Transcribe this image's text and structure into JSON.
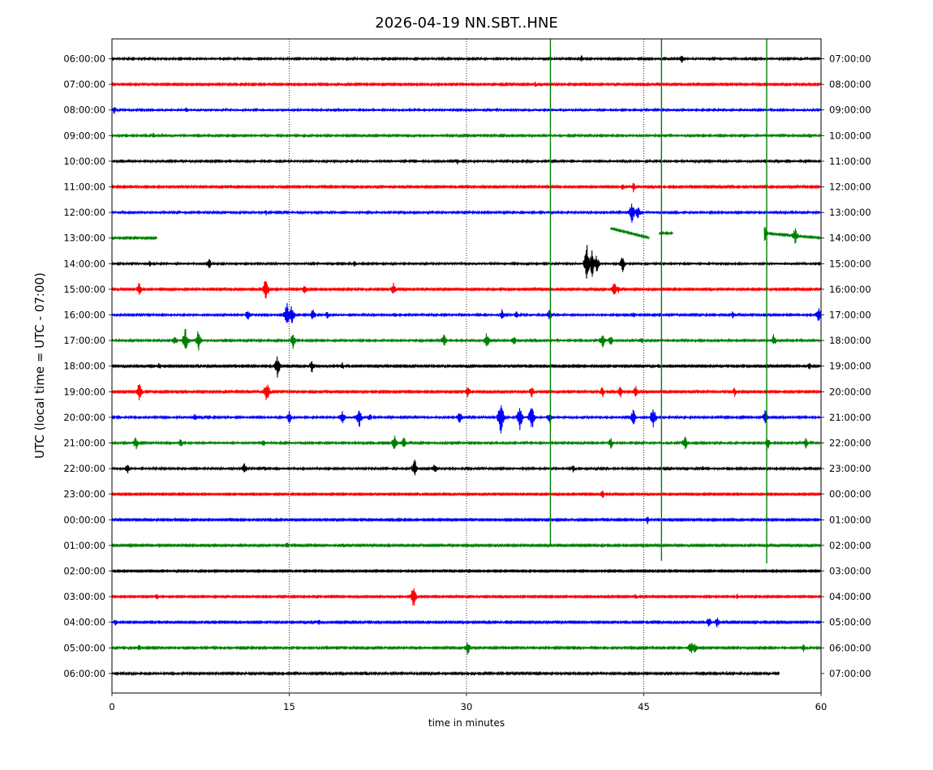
{
  "chart_data": {
    "type": "line",
    "title": "2026-04-19 NN.SBT..HNE",
    "xlabel": "time in minutes",
    "ylabel": "UTC (local time = UTC - 07:00)",
    "xlim": [
      0,
      60
    ],
    "x_ticks": [
      0,
      15,
      30,
      45,
      60
    ],
    "x_tick_labels": [
      "0",
      "15",
      "30",
      "45",
      "60"
    ],
    "vertical_gridlines_minutes": [
      15,
      30,
      45
    ],
    "grid": "dotted vertical lines at 15-minute intervals",
    "trace_colors": [
      "#000000",
      "#ff0000",
      "#0000ff",
      "#008000"
    ],
    "left_tick_labels": [
      "06:00:00",
      "07:00:00",
      "08:00:00",
      "09:00:00",
      "10:00:00",
      "11:00:00",
      "12:00:00",
      "13:00:00",
      "14:00:00",
      "15:00:00",
      "16:00:00",
      "17:00:00",
      "18:00:00",
      "19:00:00",
      "20:00:00",
      "21:00:00",
      "22:00:00",
      "23:00:00",
      "00:00:00",
      "01:00:00",
      "02:00:00",
      "03:00:00",
      "04:00:00",
      "05:00:00",
      "06:00:00"
    ],
    "right_tick_labels": [
      "07:00:00",
      "08:00:00",
      "09:00:00",
      "10:00:00",
      "11:00:00",
      "12:00:00",
      "13:00:00",
      "14:00:00",
      "15:00:00",
      "16:00:00",
      "17:00:00",
      "18:00:00",
      "19:00:00",
      "20:00:00",
      "21:00:00",
      "22:00:00",
      "23:00:00",
      "00:00:00",
      "01:00:00",
      "02:00:00",
      "03:00:00",
      "04:00:00",
      "05:00:00",
      "06:00:00",
      "07:00:00"
    ],
    "series": [
      {
        "row": 0,
        "color": "#000000",
        "start": 0,
        "end": 60,
        "noise": 1.2,
        "spikes": [
          [
            39.7,
            5
          ],
          [
            48.2,
            6
          ]
        ]
      },
      {
        "row": 1,
        "color": "#ff0000",
        "start": 0,
        "end": 60,
        "noise": 1.0,
        "spikes": [
          [
            35.8,
            4
          ]
        ]
      },
      {
        "row": 2,
        "color": "#0000ff",
        "start": 0,
        "end": 60,
        "noise": 1.3,
        "spikes": [
          [
            0.2,
            6
          ],
          [
            6.3,
            4
          ]
        ]
      },
      {
        "row": 3,
        "color": "#008000",
        "start": 0,
        "end": 60,
        "noise": 1.2,
        "spikes": [
          [
            1.2,
            4
          ],
          [
            3.5,
            4
          ],
          [
            53.5,
            4
          ]
        ]
      },
      {
        "row": 4,
        "color": "#000000",
        "start": 0,
        "end": 60,
        "noise": 1.2,
        "spikes": [
          [
            29.2,
            5
          ]
        ]
      },
      {
        "row": 5,
        "color": "#ff0000",
        "start": 0,
        "end": 60,
        "noise": 1.0,
        "spikes": [
          [
            43.2,
            5
          ],
          [
            44.1,
            7
          ],
          [
            47.5,
            3
          ]
        ]
      },
      {
        "row": 6,
        "color": "#0000ff",
        "start": 0,
        "end": 60,
        "noise": 1.2,
        "spikes": [
          [
            44.0,
            16
          ],
          [
            44.5,
            10
          ],
          [
            13.0,
            4
          ]
        ]
      },
      {
        "row": 7,
        "color": "#008000",
        "start": 0,
        "end": 60,
        "noise": 1.0,
        "segments": [
          [
            0,
            3.8
          ],
          [
            42.2,
            45.5
          ],
          [
            46.3,
            47.5
          ],
          [
            55.2,
            60
          ]
        ],
        "offsets": [
          [
            42.2,
            -12,
            45.5,
            0
          ],
          [
            46.3,
            -6,
            47.5,
            -6
          ],
          [
            55.2,
            -6,
            60,
            0
          ]
        ],
        "spikes": [
          [
            57.8,
            12
          ],
          [
            55.2,
            12
          ]
        ]
      },
      {
        "row": 8,
        "color": "#000000",
        "start": 0,
        "end": 60,
        "noise": 1.3,
        "spikes": [
          [
            40.2,
            30
          ],
          [
            40.6,
            20
          ],
          [
            41.0,
            12
          ],
          [
            43.2,
            12
          ],
          [
            8.2,
            9
          ],
          [
            3.2,
            4
          ],
          [
            20.5,
            4
          ],
          [
            50.5,
            3
          ]
        ]
      },
      {
        "row": 9,
        "color": "#ff0000",
        "start": 0,
        "end": 60,
        "noise": 1.0,
        "spikes": [
          [
            2.3,
            10
          ],
          [
            13.0,
            17
          ],
          [
            16.3,
            8
          ],
          [
            23.8,
            9
          ],
          [
            42.5,
            11
          ],
          [
            42.8,
            6
          ],
          [
            21.5,
            3
          ]
        ]
      },
      {
        "row": 10,
        "color": "#0000ff",
        "start": 0,
        "end": 60,
        "noise": 1.2,
        "spikes": [
          [
            11.5,
            9
          ],
          [
            14.8,
            20
          ],
          [
            15.2,
            14
          ],
          [
            17.0,
            9
          ],
          [
            18.2,
            5
          ],
          [
            33.0,
            7
          ],
          [
            34.2,
            6
          ],
          [
            37.0,
            8
          ],
          [
            44.1,
            5
          ],
          [
            52.5,
            5
          ],
          [
            59.8,
            12
          ]
        ]
      },
      {
        "row": 11,
        "color": "#008000",
        "start": 0,
        "end": 60,
        "noise": 1.2,
        "spikes": [
          [
            5.3,
            9
          ],
          [
            6.2,
            18
          ],
          [
            7.3,
            15
          ],
          [
            15.3,
            11
          ],
          [
            28.1,
            10
          ],
          [
            31.7,
            12
          ],
          [
            34.0,
            7
          ],
          [
            41.5,
            12
          ],
          [
            42.2,
            8
          ],
          [
            44.8,
            5
          ],
          [
            56.0,
            9
          ]
        ]
      },
      {
        "row": 12,
        "color": "#000000",
        "start": 0,
        "end": 60,
        "noise": 1.0,
        "spikes": [
          [
            14.0,
            16
          ],
          [
            16.9,
            9
          ],
          [
            4.0,
            5
          ],
          [
            19.5,
            5
          ],
          [
            35.0,
            4
          ],
          [
            59.0,
            5
          ]
        ]
      },
      {
        "row": 13,
        "color": "#ff0000",
        "start": 0,
        "end": 60,
        "noise": 1.0,
        "spikes": [
          [
            2.3,
            14
          ],
          [
            13.1,
            18
          ],
          [
            30.1,
            9
          ],
          [
            35.5,
            9
          ],
          [
            41.5,
            8
          ],
          [
            43.0,
            8
          ],
          [
            44.3,
            9
          ],
          [
            52.7,
            7
          ]
        ]
      },
      {
        "row": 14,
        "color": "#0000ff",
        "start": 0,
        "end": 60,
        "noise": 1.2,
        "spikes": [
          [
            19.5,
            10
          ],
          [
            20.9,
            15
          ],
          [
            29.4,
            10
          ],
          [
            32.9,
            28
          ],
          [
            34.5,
            18
          ],
          [
            35.5,
            20
          ],
          [
            37.0,
            8
          ],
          [
            44.1,
            12
          ],
          [
            45.8,
            18
          ],
          [
            15.0,
            9
          ],
          [
            21.8,
            6
          ],
          [
            55.3,
            12
          ],
          [
            7.0,
            6
          ]
        ]
      },
      {
        "row": 15,
        "color": "#008000",
        "start": 0,
        "end": 60,
        "noise": 1.2,
        "spikes": [
          [
            2.0,
            10
          ],
          [
            23.9,
            12
          ],
          [
            24.7,
            9
          ],
          [
            5.8,
            6
          ],
          [
            42.2,
            8
          ],
          [
            48.5,
            12
          ],
          [
            55.5,
            8
          ],
          [
            58.7,
            8
          ],
          [
            12.8,
            5
          ]
        ]
      },
      {
        "row": 16,
        "color": "#000000",
        "start": 0,
        "end": 60,
        "noise": 1.2,
        "spikes": [
          [
            11.2,
            8
          ],
          [
            25.6,
            14
          ],
          [
            27.3,
            9
          ],
          [
            1.3,
            7
          ],
          [
            39.0,
            5
          ],
          [
            50.0,
            4
          ]
        ]
      },
      {
        "row": 17,
        "color": "#ff0000",
        "start": 0,
        "end": 60,
        "noise": 0.9,
        "spikes": [
          [
            41.5,
            6
          ],
          [
            26.0,
            3
          ]
        ]
      },
      {
        "row": 18,
        "color": "#0000ff",
        "start": 0,
        "end": 60,
        "noise": 1.0,
        "spikes": [
          [
            45.3,
            6
          ]
        ]
      },
      {
        "row": 19,
        "color": "#008000",
        "start": 0,
        "end": 60,
        "noise": 1.0,
        "spikes": [
          [
            14.8,
            5
          ],
          [
            19.5,
            3
          ]
        ]
      },
      {
        "row": 20,
        "color": "#000000",
        "start": 0,
        "end": 60,
        "noise": 0.9,
        "spikes": [
          [
            30.2,
            4
          ]
        ]
      },
      {
        "row": 21,
        "color": "#ff0000",
        "start": 0,
        "end": 60,
        "noise": 0.9,
        "spikes": [
          [
            25.5,
            16
          ],
          [
            3.8,
            5
          ],
          [
            44.3,
            5
          ],
          [
            52.9,
            4
          ]
        ]
      },
      {
        "row": 22,
        "color": "#0000ff",
        "start": 0,
        "end": 60,
        "noise": 1.0,
        "spikes": [
          [
            0.3,
            5
          ],
          [
            17.5,
            5
          ],
          [
            50.5,
            8
          ],
          [
            51.2,
            8
          ]
        ]
      },
      {
        "row": 23,
        "color": "#008000",
        "start": 0,
        "end": 60,
        "noise": 1.1,
        "spikes": [
          [
            30.1,
            10
          ],
          [
            49.0,
            11
          ],
          [
            49.3,
            9
          ],
          [
            2.3,
            5
          ],
          [
            58.5,
            5
          ]
        ]
      },
      {
        "row": 24,
        "color": "#000000",
        "start": 0,
        "end": 56.5,
        "noise": 1.1,
        "spikes": [
          [
            21.5,
            4
          ],
          [
            52.0,
            3
          ]
        ]
      }
    ],
    "vertical_events": [
      {
        "minute": 37.1,
        "color": "#008000",
        "from_row": -0.9,
        "to_row": 19.0
      },
      {
        "minute": 46.5,
        "color": "#008000",
        "from_row": -0.9,
        "to_row": 19.6
      },
      {
        "minute": 55.4,
        "color": "#008000",
        "from_row": -0.9,
        "to_row": 19.7
      }
    ]
  }
}
